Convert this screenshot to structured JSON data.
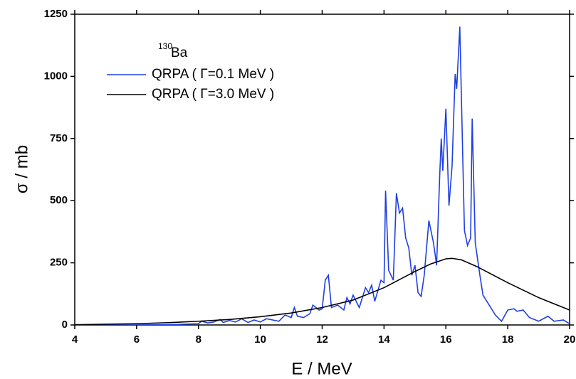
{
  "chart_data": {
    "type": "line",
    "xlabel": "E / MeV",
    "ylabel": "σ / mb",
    "legend_title_sup": "130",
    "legend_title": "Ba",
    "xlim": [
      4,
      20
    ],
    "xticks": [
      4,
      6,
      8,
      10,
      12,
      14,
      16,
      18,
      20
    ],
    "ylim": [
      0,
      1250
    ],
    "yticks": [
      0,
      250,
      500,
      750,
      1000,
      1250
    ],
    "series": [
      {
        "name": "QRPA ( Γ=0.1 MeV )",
        "color": "#1f3fe0",
        "x": [
          4,
          5,
          6,
          7,
          7.5,
          8,
          8.1,
          8.3,
          8.5,
          8.7,
          8.8,
          9,
          9.2,
          9.4,
          9.6,
          9.8,
          10,
          10.2,
          10.4,
          10.6,
          10.8,
          11,
          11.1,
          11.2,
          11.4,
          11.6,
          11.7,
          11.9,
          12.0,
          12.1,
          12.2,
          12.3,
          12.5,
          12.7,
          12.8,
          12.9,
          13.0,
          13.2,
          13.3,
          13.4,
          13.5,
          13.6,
          13.7,
          13.9,
          14.0,
          14.05,
          14.15,
          14.3,
          14.4,
          14.5,
          14.6,
          14.7,
          14.8,
          14.9,
          15.0,
          15.1,
          15.2,
          15.3,
          15.45,
          15.6,
          15.7,
          15.8,
          15.85,
          15.9,
          16.0,
          16.1,
          16.2,
          16.3,
          16.35,
          16.45,
          16.55,
          16.6,
          16.7,
          16.8,
          16.85,
          16.95,
          17.1,
          17.2,
          17.4,
          17.6,
          17.8,
          18.0,
          18.2,
          18.3,
          18.5,
          18.7,
          19.0,
          19.3,
          19.5,
          19.8,
          20
        ],
        "values": [
          0,
          0,
          0,
          1,
          3,
          5,
          15,
          8,
          12,
          22,
          10,
          18,
          12,
          25,
          10,
          20,
          12,
          25,
          20,
          15,
          40,
          30,
          70,
          35,
          30,
          45,
          80,
          60,
          65,
          180,
          200,
          70,
          80,
          60,
          110,
          85,
          120,
          70,
          110,
          150,
          130,
          160,
          95,
          180,
          170,
          540,
          220,
          180,
          530,
          450,
          470,
          350,
          310,
          200,
          240,
          130,
          115,
          200,
          420,
          330,
          240,
          600,
          750,
          620,
          870,
          480,
          640,
          1010,
          950,
          1200,
          650,
          380,
          320,
          350,
          830,
          330,
          200,
          120,
          80,
          40,
          15,
          60,
          65,
          55,
          60,
          30,
          15,
          35,
          15,
          20,
          5
        ]
      },
      {
        "name": "QRPA ( Γ=3.0 MeV )",
        "color": "#000000",
        "x": [
          4,
          5,
          6,
          7,
          8,
          9,
          10,
          11,
          12,
          13,
          14,
          15,
          15.5,
          16,
          16.2,
          16.5,
          17,
          18,
          19,
          20
        ],
        "values": [
          1,
          3,
          5,
          9,
          15,
          22,
          33,
          48,
          70,
          100,
          150,
          215,
          245,
          266,
          268,
          262,
          235,
          170,
          110,
          60
        ]
      }
    ]
  }
}
